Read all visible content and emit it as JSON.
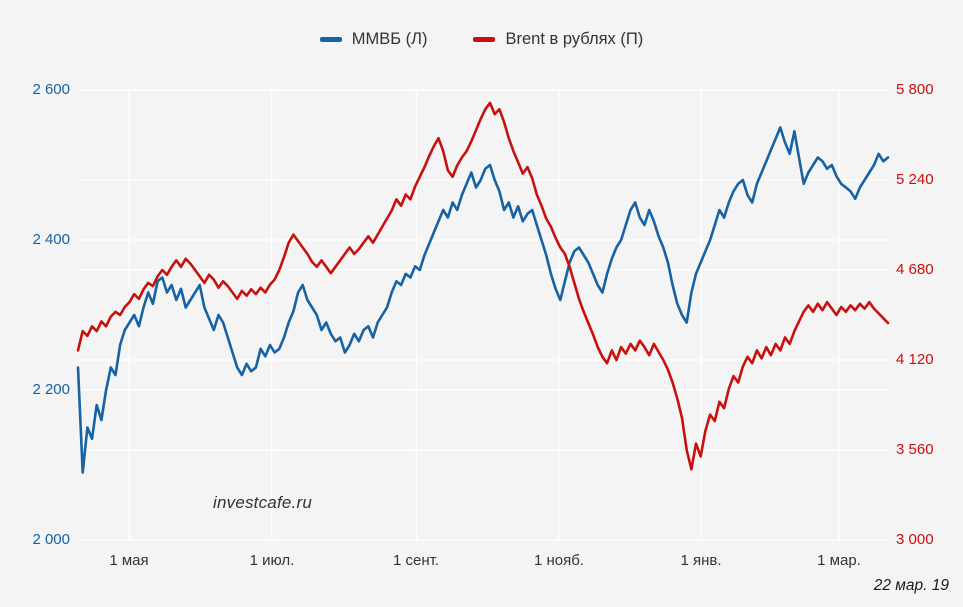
{
  "page": {
    "background": "#f4f4f4",
    "grid_color": "#ffffff",
    "watermark": "investcafe.ru",
    "date_note": "22 мар. 19"
  },
  "legend": {
    "items": [
      {
        "label": "ММВБ (Л)",
        "color": "#1562a5"
      },
      {
        "label": "Brent в рублях (П)",
        "color": "#c8100e"
      }
    ]
  },
  "chart_data": {
    "type": "line",
    "title": "",
    "xlabel": "",
    "ylabel_left": "ММВБ",
    "ylabel_right": "Brent в рублях",
    "grid": true,
    "legend_position": "top",
    "x_ticks": [
      "1 мая",
      "1 июл.",
      "1 сент.",
      "1 нояб.",
      "1 янв.",
      "1 мар."
    ],
    "left_axis": {
      "min": 2000,
      "max": 2600,
      "color": "#1562a5",
      "ticks": [
        "2 600",
        "2 400",
        "2 200",
        "2 000"
      ],
      "tick_values": [
        2600,
        2400,
        2200,
        2000
      ]
    },
    "right_axis": {
      "min": 3000,
      "max": 5800,
      "color": "#c8100e",
      "ticks": [
        "5 800",
        "5 240",
        "4 680",
        "4 120",
        "3 560",
        "3 000"
      ],
      "tick_values": [
        5800,
        5240,
        4680,
        4120,
        3560,
        3000
      ]
    },
    "series": [
      {
        "name": "ММВБ (Л)",
        "axis": "left",
        "color": "#1562a5",
        "values": [
          2230,
          2090,
          2150,
          2135,
          2180,
          2160,
          2200,
          2230,
          2220,
          2260,
          2280,
          2290,
          2300,
          2285,
          2310,
          2330,
          2315,
          2345,
          2350,
          2330,
          2340,
          2320,
          2335,
          2310,
          2320,
          2330,
          2340,
          2310,
          2295,
          2280,
          2300,
          2290,
          2270,
          2250,
          2230,
          2220,
          2235,
          2225,
          2230,
          2255,
          2245,
          2260,
          2250,
          2255,
          2270,
          2290,
          2305,
          2330,
          2340,
          2320,
          2310,
          2300,
          2280,
          2290,
          2275,
          2265,
          2270,
          2250,
          2260,
          2275,
          2265,
          2280,
          2285,
          2270,
          2290,
          2300,
          2310,
          2330,
          2345,
          2340,
          2355,
          2350,
          2365,
          2360,
          2380,
          2395,
          2410,
          2425,
          2440,
          2430,
          2450,
          2440,
          2460,
          2475,
          2490,
          2470,
          2480,
          2495,
          2500,
          2480,
          2465,
          2440,
          2450,
          2430,
          2445,
          2425,
          2435,
          2440,
          2420,
          2400,
          2380,
          2355,
          2335,
          2320,
          2345,
          2370,
          2385,
          2390,
          2380,
          2370,
          2355,
          2340,
          2330,
          2355,
          2375,
          2390,
          2400,
          2420,
          2440,
          2450,
          2430,
          2420,
          2440,
          2425,
          2405,
          2390,
          2370,
          2340,
          2315,
          2300,
          2290,
          2330,
          2355,
          2370,
          2385,
          2400,
          2420,
          2440,
          2430,
          2450,
          2465,
          2475,
          2480,
          2460,
          2450,
          2475,
          2490,
          2505,
          2520,
          2535,
          2550,
          2530,
          2515,
          2545,
          2510,
          2475,
          2490,
          2500,
          2510,
          2505,
          2495,
          2500,
          2485,
          2475,
          2470,
          2465,
          2455,
          2470,
          2480,
          2490,
          2500,
          2515,
          2505,
          2510
        ]
      },
      {
        "name": "Brent в рублях (П)",
        "axis": "right",
        "color": "#c8100e",
        "values": [
          4180,
          4300,
          4270,
          4330,
          4300,
          4360,
          4330,
          4390,
          4420,
          4400,
          4450,
          4480,
          4530,
          4500,
          4560,
          4600,
          4580,
          4640,
          4680,
          4650,
          4700,
          4740,
          4700,
          4750,
          4720,
          4680,
          4640,
          4600,
          4650,
          4620,
          4570,
          4610,
          4580,
          4540,
          4500,
          4550,
          4520,
          4560,
          4530,
          4570,
          4540,
          4590,
          4620,
          4680,
          4760,
          4850,
          4900,
          4860,
          4820,
          4780,
          4730,
          4700,
          4740,
          4700,
          4660,
          4700,
          4740,
          4780,
          4820,
          4780,
          4810,
          4850,
          4890,
          4850,
          4900,
          4950,
          5000,
          5050,
          5120,
          5080,
          5150,
          5120,
          5200,
          5260,
          5320,
          5390,
          5450,
          5500,
          5420,
          5300,
          5260,
          5330,
          5380,
          5420,
          5480,
          5550,
          5620,
          5680,
          5720,
          5650,
          5680,
          5600,
          5500,
          5420,
          5350,
          5280,
          5320,
          5250,
          5150,
          5080,
          5000,
          4950,
          4880,
          4820,
          4780,
          4700,
          4600,
          4500,
          4420,
          4350,
          4280,
          4200,
          4140,
          4100,
          4180,
          4120,
          4200,
          4160,
          4220,
          4180,
          4240,
          4200,
          4150,
          4220,
          4170,
          4120,
          4060,
          3980,
          3880,
          3760,
          3560,
          3440,
          3600,
          3520,
          3680,
          3780,
          3740,
          3860,
          3820,
          3940,
          4020,
          3980,
          4080,
          4140,
          4100,
          4180,
          4130,
          4200,
          4150,
          4220,
          4180,
          4260,
          4220,
          4300,
          4360,
          4420,
          4460,
          4420,
          4470,
          4430,
          4480,
          4440,
          4400,
          4450,
          4420,
          4460,
          4430,
          4470,
          4440,
          4480,
          4440,
          4410,
          4380,
          4350
        ]
      }
    ]
  }
}
